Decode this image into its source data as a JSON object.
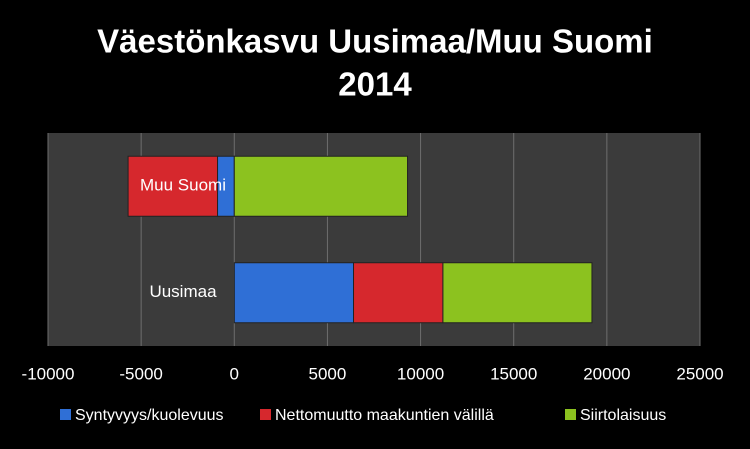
{
  "chart_data": {
    "type": "stacked-hbar",
    "title": [
      "Väestönkasvu Uusimaa/Muu Suomi",
      "2014"
    ],
    "categories": [
      "Muu Suomi",
      "Uusimaa"
    ],
    "series": [
      {
        "name": "Syntyvyys/kuolevuus",
        "color": "#2f6fd6",
        "values": [
          -900,
          6400
        ]
      },
      {
        "name": "Nettomuutto maakuntien välillä",
        "color": "#d6282d",
        "values": [
          -4800,
          4800
        ]
      },
      {
        "name": "Siirtolaisuus",
        "color": "#8cc21f",
        "values": [
          9300,
          8000
        ]
      }
    ],
    "xlim": [
      -10000,
      25000
    ],
    "xticks": [
      -10000,
      -5000,
      0,
      5000,
      10000,
      15000,
      20000,
      25000
    ],
    "grid": true
  }
}
